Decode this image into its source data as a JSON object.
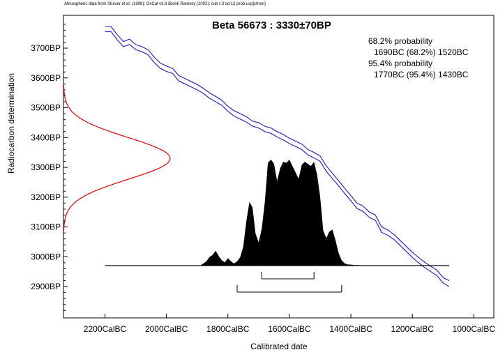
{
  "chart_data": {
    "type": "line",
    "header_note": "Atmospheric data from Stuiver et al. (1998); OxCal v3.8 Bronk Ramsey (2002); cub r:3 sd:12 prob usp[chron]",
    "title": "Beta 56673 : 3330±70BP",
    "xlabel": "Calibrated date",
    "ylabel": "Radiocarbon determination",
    "x_ticks": [
      {
        "label": "2200CalBC",
        "value": -2200
      },
      {
        "label": "2000CalBC",
        "value": -2000
      },
      {
        "label": "1800CalBC",
        "value": -1800
      },
      {
        "label": "1600CalBC",
        "value": -1600
      },
      {
        "label": "1400CalBC",
        "value": -1400
      },
      {
        "label": "1200CalBC",
        "value": -1200
      },
      {
        "label": "1000CalBC",
        "value": -1000
      }
    ],
    "y_ticks": [
      {
        "label": "3700BP",
        "value": 3700
      },
      {
        "label": "3600BP",
        "value": 3600
      },
      {
        "label": "3500BP",
        "value": 3500
      },
      {
        "label": "3400BP",
        "value": 3400
      },
      {
        "label": "3300BP",
        "value": 3300
      },
      {
        "label": "3200BP",
        "value": 3200
      },
      {
        "label": "3100BP",
        "value": 3100
      },
      {
        "label": "3000BP",
        "value": 3000
      },
      {
        "label": "2900BP",
        "value": 2900
      }
    ],
    "xlim": [
      -2335,
      -935
    ],
    "ylim": [
      2795,
      3810
    ],
    "stats": {
      "line1": "68.2% probability",
      "line2": "1690BC (68.2%) 1520BC",
      "line3": "95.4% probability",
      "line4": "1770BC (95.4%) 1430BC"
    },
    "ranges": {
      "sigma1": {
        "from": -1690,
        "to": -1520
      },
      "sigma2": {
        "from": -1770,
        "to": -1430
      }
    },
    "measurement": {
      "mean": 3330,
      "sd": 70
    },
    "calibration_curve": {
      "x": [
        -2200,
        -2180,
        -2160,
        -2140,
        -2120,
        -2100,
        -2080,
        -2060,
        -2040,
        -2020,
        -2000,
        -1980,
        -1960,
        -1940,
        -1920,
        -1900,
        -1880,
        -1860,
        -1840,
        -1820,
        -1800,
        -1780,
        -1760,
        -1740,
        -1720,
        -1700,
        -1680,
        -1660,
        -1640,
        -1620,
        -1600,
        -1580,
        -1560,
        -1540,
        -1520,
        -1500,
        -1480,
        -1460,
        -1440,
        -1420,
        -1400,
        -1380,
        -1360,
        -1340,
        -1320,
        -1300,
        -1280,
        -1260,
        -1240,
        -1220,
        -1200,
        -1180,
        -1160,
        -1140,
        -1120,
        -1100,
        -1080
      ],
      "upper": [
        3772,
        3772,
        3745,
        3722,
        3730,
        3712,
        3705,
        3695,
        3670,
        3650,
        3640,
        3632,
        3608,
        3598,
        3588,
        3578,
        3565,
        3550,
        3538,
        3525,
        3505,
        3490,
        3480,
        3470,
        3455,
        3450,
        3438,
        3432,
        3420,
        3410,
        3398,
        3388,
        3378,
        3360,
        3350,
        3338,
        3305,
        3280,
        3255,
        3230,
        3205,
        3180,
        3170,
        3150,
        3140,
        3100,
        3090,
        3075,
        3055,
        3035,
        3015,
        2998,
        2982,
        2968,
        2955,
        2930,
        2920
      ],
      "lower": [
        3755,
        3755,
        3728,
        3705,
        3712,
        3695,
        3688,
        3678,
        3652,
        3632,
        3622,
        3615,
        3590,
        3580,
        3570,
        3560,
        3548,
        3532,
        3520,
        3508,
        3488,
        3472,
        3462,
        3452,
        3438,
        3432,
        3420,
        3414,
        3402,
        3392,
        3380,
        3370,
        3360,
        3342,
        3332,
        3320,
        3287,
        3262,
        3238,
        3212,
        3188,
        3162,
        3152,
        3132,
        3122,
        3082,
        3072,
        3058,
        3038,
        3018,
        2998,
        2980,
        2964,
        2950,
        2937,
        2912,
        2900
      ]
    },
    "calibrated_distribution": {
      "x": [
        -2200,
        -1890,
        -1880,
        -1870,
        -1860,
        -1850,
        -1840,
        -1830,
        -1820,
        -1810,
        -1800,
        -1790,
        -1780,
        -1770,
        -1760,
        -1750,
        -1740,
        -1730,
        -1720,
        -1710,
        -1700,
        -1690,
        -1680,
        -1670,
        -1660,
        -1650,
        -1640,
        -1630,
        -1620,
        -1610,
        -1600,
        -1590,
        -1580,
        -1570,
        -1560,
        -1550,
        -1540,
        -1530,
        -1520,
        -1510,
        -1500,
        -1490,
        -1480,
        -1470,
        -1460,
        -1450,
        -1440,
        -1430,
        -1420,
        -1410,
        -1400,
        -1390,
        -1380,
        -1370,
        -1360,
        -1350,
        -1340,
        -1330,
        -1320,
        -1080
      ],
      "density": [
        0,
        0,
        0.02,
        0.04,
        0.08,
        0.1,
        0.14,
        0.09,
        0.05,
        0.03,
        0.07,
        0.04,
        0.02,
        0.04,
        0.08,
        0.18,
        0.42,
        0.6,
        0.55,
        0.3,
        0.22,
        0.35,
        0.6,
        0.97,
        1.0,
        0.96,
        0.8,
        0.92,
        0.98,
        0.97,
        1.0,
        0.94,
        0.88,
        0.82,
        0.95,
        0.98,
        0.96,
        0.94,
        0.98,
        0.86,
        0.65,
        0.33,
        0.26,
        0.32,
        0.34,
        0.24,
        0.12,
        0.05,
        0.02,
        0.01,
        0.01,
        0.005,
        0.005,
        0.003,
        0.002,
        0.002,
        0.001,
        0.001,
        0,
        0
      ]
    },
    "grid": false,
    "colors": {
      "curve": "#2a2ac8",
      "probability": "#e00000",
      "histogram": "#000000"
    }
  }
}
